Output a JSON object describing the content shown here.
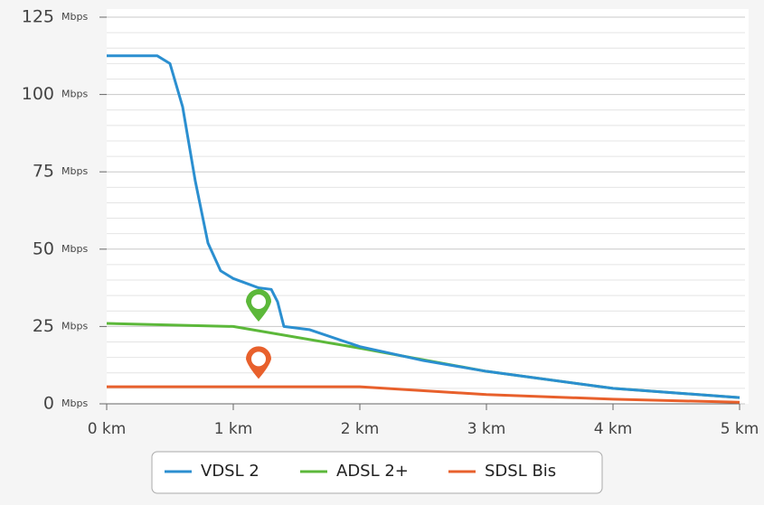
{
  "chart_data": {
    "type": "line",
    "y_unit": "Mbps",
    "xlim": [
      0,
      5
    ],
    "xticks": [
      {
        "value": 0,
        "label": "0 km"
      },
      {
        "value": 1,
        "label": "1 km"
      },
      {
        "value": 2,
        "label": "2 km"
      },
      {
        "value": 3,
        "label": "3 km"
      },
      {
        "value": 4,
        "label": "4 km"
      },
      {
        "value": 5,
        "label": "5 km"
      }
    ],
    "ylim": [
      0,
      125
    ],
    "yticks": [
      0,
      25,
      50,
      75,
      100,
      125
    ],
    "minor_yticks": [
      5,
      10,
      15,
      20,
      30,
      35,
      40,
      45,
      55,
      60,
      65,
      70,
      80,
      85,
      90,
      95,
      105,
      110,
      115,
      120
    ],
    "grid": true,
    "legend": "bottom",
    "series": [
      {
        "name": "VDSL 2",
        "color": "#2b8fd0",
        "x": [
          0,
          0.4,
          0.5,
          0.6,
          0.7,
          0.8,
          0.9,
          1.0,
          1.1,
          1.2,
          1.3,
          1.35,
          1.4,
          1.6,
          2.0,
          2.5,
          3.0,
          4.0,
          5.0
        ],
        "values": [
          112.5,
          112.5,
          110,
          96,
          72,
          52,
          43,
          40.5,
          39,
          37.5,
          37,
          33,
          25,
          24,
          18.5,
          14,
          10.5,
          5,
          2
        ]
      },
      {
        "name": "ADSL 2+",
        "color": "#5cb83a",
        "x": [
          0,
          1.0,
          2.0,
          3.0,
          4.0,
          5.0
        ],
        "values": [
          26,
          25,
          18,
          10.5,
          5,
          2
        ]
      },
      {
        "name": "SDSL Bis",
        "color": "#e8602c",
        "x": [
          0,
          2.0,
          3.0,
          4.0,
          5.0
        ],
        "values": [
          5.5,
          5.5,
          3,
          1.5,
          0.5
        ]
      }
    ],
    "markers": [
      {
        "x": 1.2,
        "y": 33,
        "color": "#5cb83a"
      },
      {
        "x": 1.2,
        "y": 14.5,
        "color": "#e8602c"
      }
    ]
  }
}
